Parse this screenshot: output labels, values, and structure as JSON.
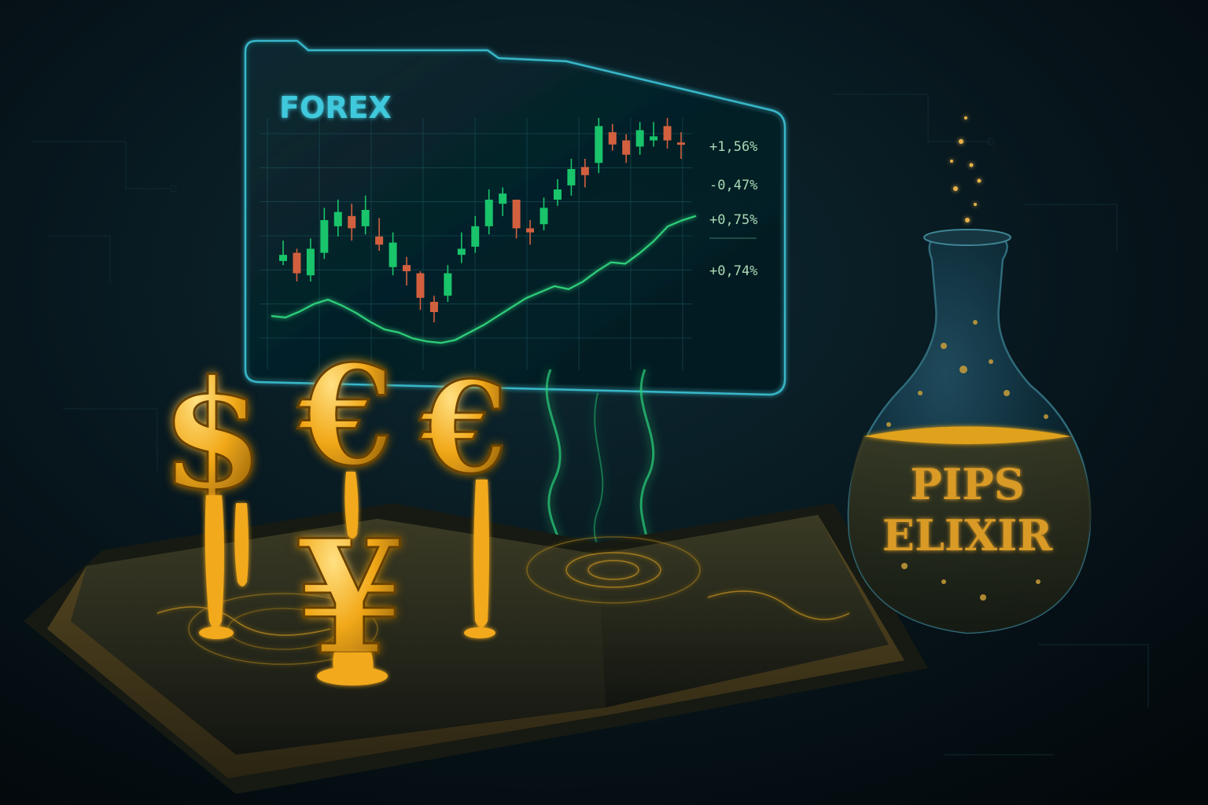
{
  "panel": {
    "title": "FOREX",
    "percentages": [
      "+1,56%",
      "-0,47%",
      "+0,75%",
      "+0,74%"
    ]
  },
  "chart_data": {
    "type": "candlestick",
    "candles": [
      {
        "o": 0.3,
        "c": 0.33,
        "h": 0.4,
        "l": 0.28
      },
      {
        "o": 0.34,
        "c": 0.24,
        "h": 0.36,
        "l": 0.2
      },
      {
        "o": 0.23,
        "c": 0.36,
        "h": 0.41,
        "l": 0.2
      },
      {
        "o": 0.34,
        "c": 0.5,
        "h": 0.56,
        "l": 0.31
      },
      {
        "o": 0.47,
        "c": 0.54,
        "h": 0.6,
        "l": 0.42
      },
      {
        "o": 0.52,
        "c": 0.46,
        "h": 0.58,
        "l": 0.4
      },
      {
        "o": 0.47,
        "c": 0.55,
        "h": 0.62,
        "l": 0.43
      },
      {
        "o": 0.42,
        "c": 0.38,
        "h": 0.51,
        "l": 0.35
      },
      {
        "o": 0.27,
        "c": 0.39,
        "h": 0.44,
        "l": 0.23
      },
      {
        "o": 0.28,
        "c": 0.25,
        "h": 0.32,
        "l": 0.18
      },
      {
        "o": 0.24,
        "c": 0.12,
        "h": 0.25,
        "l": 0.06
      },
      {
        "o": 0.1,
        "c": 0.05,
        "h": 0.13,
        "l": 0.0
      },
      {
        "o": 0.13,
        "c": 0.24,
        "h": 0.28,
        "l": 0.1
      },
      {
        "o": 0.33,
        "c": 0.36,
        "h": 0.44,
        "l": 0.29
      },
      {
        "o": 0.37,
        "c": 0.47,
        "h": 0.52,
        "l": 0.34
      },
      {
        "o": 0.47,
        "c": 0.6,
        "h": 0.65,
        "l": 0.43
      },
      {
        "o": 0.58,
        "c": 0.63,
        "h": 0.66,
        "l": 0.52
      },
      {
        "o": 0.6,
        "c": 0.46,
        "h": 0.6,
        "l": 0.41
      },
      {
        "o": 0.46,
        "c": 0.44,
        "h": 0.5,
        "l": 0.38
      },
      {
        "o": 0.48,
        "c": 0.56,
        "h": 0.61,
        "l": 0.45
      },
      {
        "o": 0.6,
        "c": 0.65,
        "h": 0.7,
        "l": 0.57
      },
      {
        "o": 0.67,
        "c": 0.75,
        "h": 0.8,
        "l": 0.62
      },
      {
        "o": 0.76,
        "c": 0.72,
        "h": 0.8,
        "l": 0.66
      },
      {
        "o": 0.78,
        "c": 0.96,
        "h": 1.0,
        "l": 0.73
      },
      {
        "o": 0.93,
        "c": 0.87,
        "h": 0.97,
        "l": 0.84
      },
      {
        "o": 0.89,
        "c": 0.82,
        "h": 0.92,
        "l": 0.78
      },
      {
        "o": 0.86,
        "c": 0.94,
        "h": 0.98,
        "l": 0.82
      },
      {
        "o": 0.89,
        "c": 0.91,
        "h": 0.98,
        "l": 0.86
      },
      {
        "o": 0.96,
        "c": 0.89,
        "h": 1.0,
        "l": 0.85
      },
      {
        "o": 0.88,
        "c": 0.87,
        "h": 0.93,
        "l": 0.8
      }
    ],
    "line": [
      0.2,
      0.19,
      0.23,
      0.28,
      0.31,
      0.27,
      0.22,
      0.16,
      0.11,
      0.09,
      0.05,
      0.03,
      0.02,
      0.04,
      0.09,
      0.14,
      0.2,
      0.26,
      0.32,
      0.36,
      0.4,
      0.38,
      0.43,
      0.5,
      0.56,
      0.55,
      0.62,
      0.7,
      0.8,
      0.84,
      0.87
    ],
    "colors": {
      "up": "#19c46a",
      "down": "#d2603f",
      "line": "#2fd07a"
    }
  },
  "symbols": [
    "$",
    "€",
    "€",
    "¥"
  ],
  "bottle": {
    "label_line1": "PIPS",
    "label_line2": "ELIXIR"
  },
  "colors": {
    "gold": "#f2a91a",
    "gold_dark": "#8a5a08",
    "panel_border": "#37b7c9",
    "forex_text": "#41c9dc",
    "pct_text": "#a9d9b4"
  }
}
